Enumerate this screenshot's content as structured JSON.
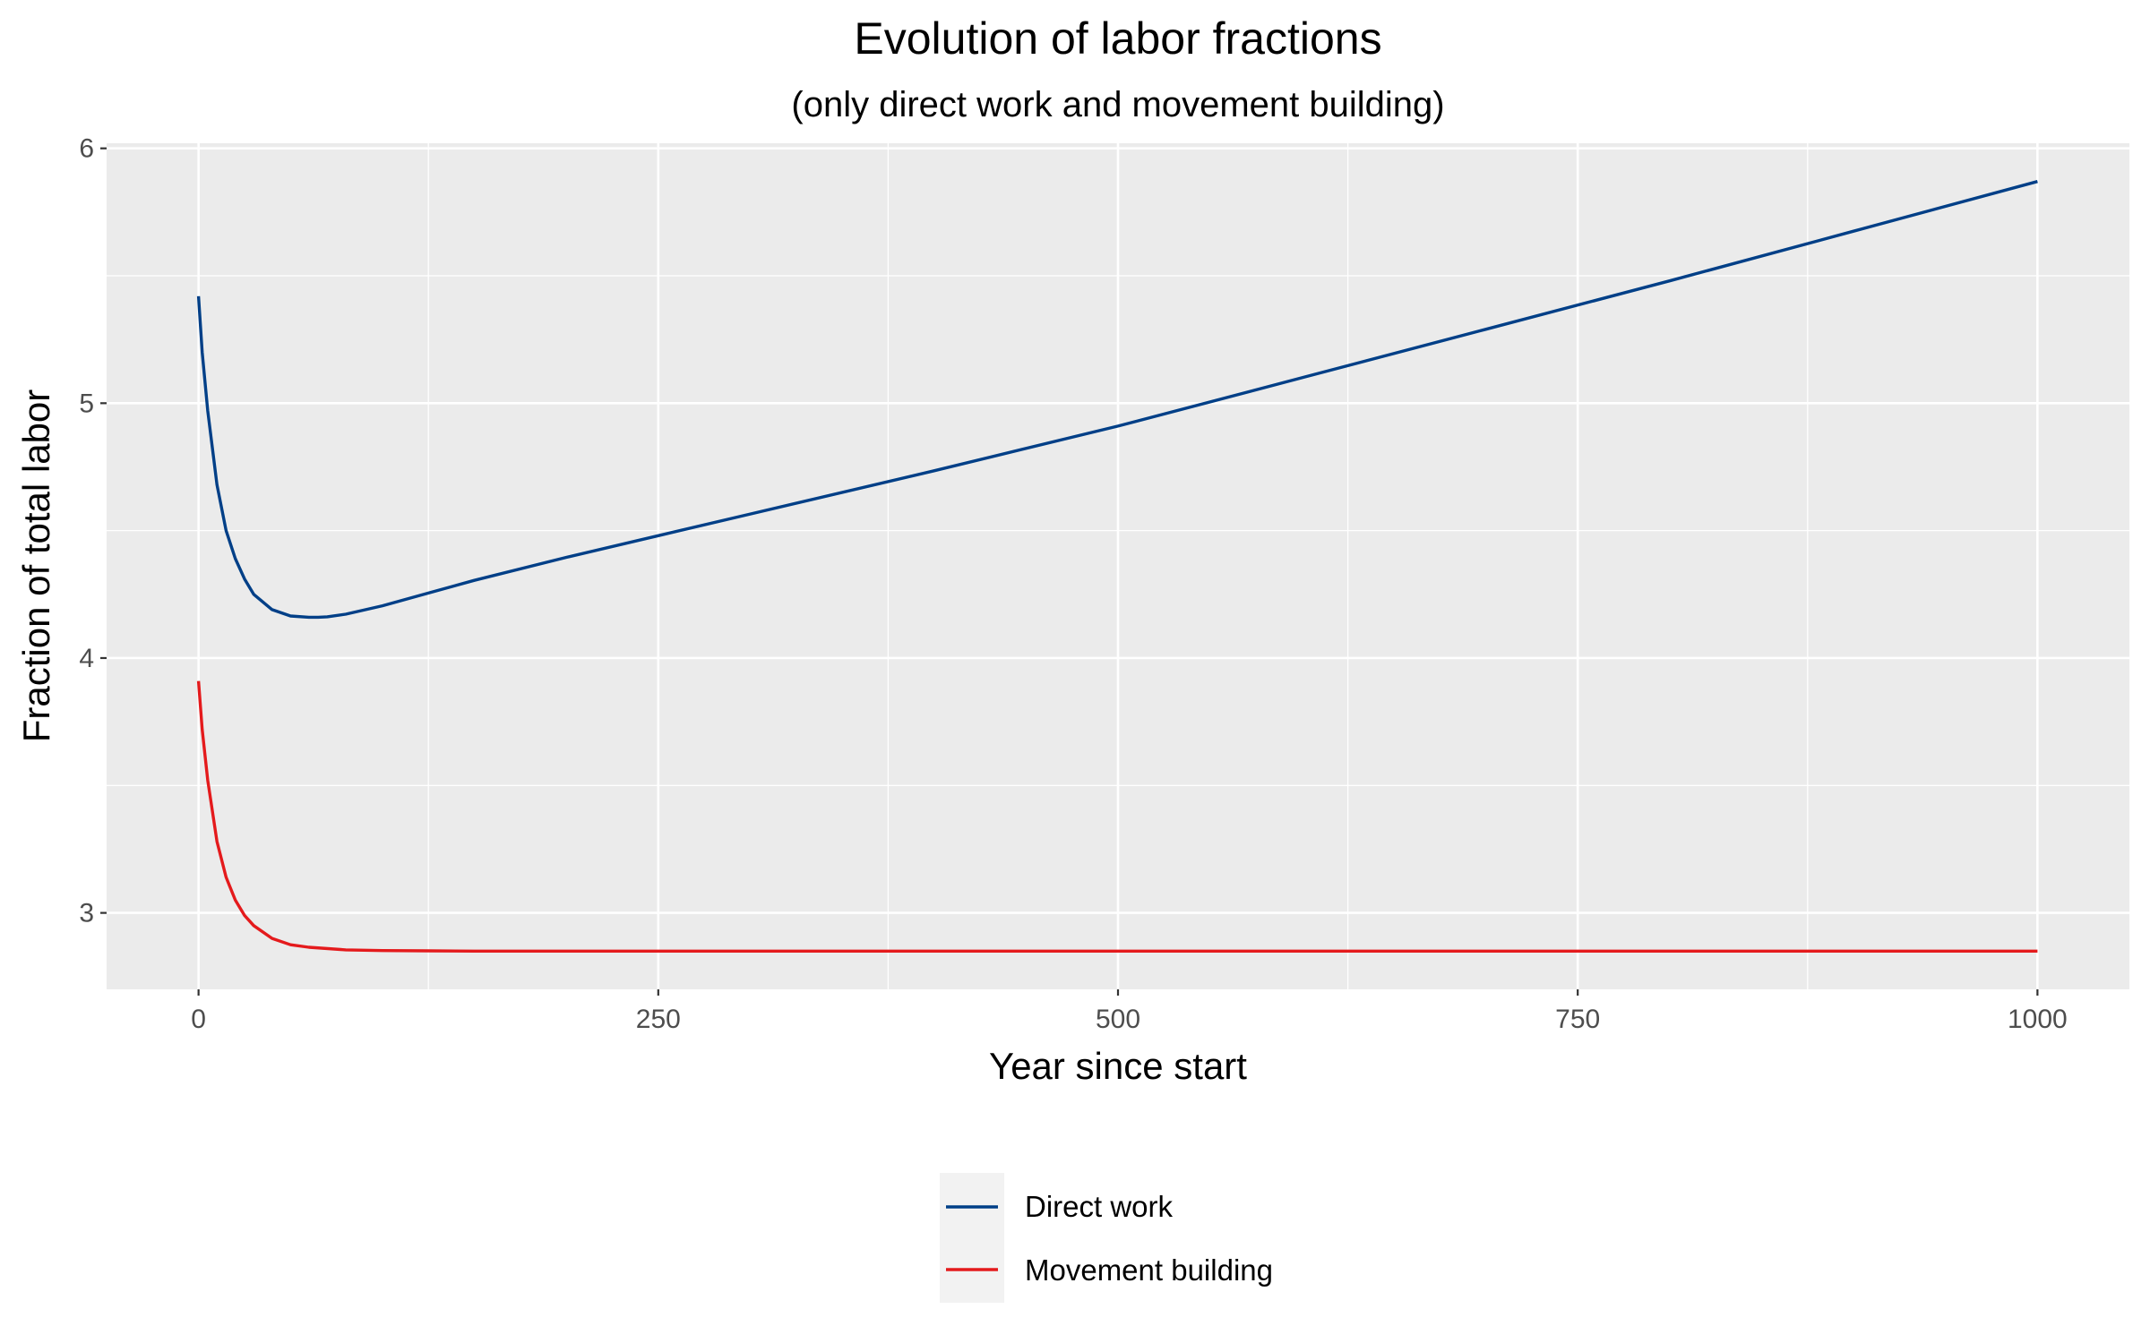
{
  "chart_data": {
    "type": "line",
    "title": "Evolution of labor fractions",
    "subtitle": "(only direct work and movement building)",
    "xlabel": "Year since start",
    "ylabel": "Fraction of total labor",
    "xlim": [
      -50,
      1050
    ],
    "ylim": [
      2.7,
      6.02
    ],
    "x_ticks": [
      0,
      250,
      500,
      750,
      1000
    ],
    "y_ticks": [
      3,
      4,
      5,
      6
    ],
    "grid": true,
    "legend_position": "bottom",
    "series": [
      {
        "name": "Direct work",
        "color": "#003f87",
        "x": [
          0,
          2,
          5,
          10,
          15,
          20,
          25,
          30,
          40,
          50,
          60,
          65,
          70,
          80,
          100,
          125,
          150,
          200,
          250,
          300,
          400,
          500,
          600,
          700,
          800,
          900,
          1000
        ],
        "y": [
          5.42,
          5.2,
          4.97,
          4.68,
          4.5,
          4.39,
          4.31,
          4.25,
          4.19,
          4.165,
          4.16,
          4.16,
          4.162,
          4.172,
          4.205,
          4.255,
          4.305,
          4.395,
          4.48,
          4.565,
          4.735,
          4.91,
          5.1,
          5.29,
          5.48,
          5.675,
          5.87
        ]
      },
      {
        "name": "Movement building",
        "color": "#e41a1c",
        "x": [
          0,
          2,
          5,
          10,
          15,
          20,
          25,
          30,
          40,
          50,
          60,
          80,
          100,
          125,
          150,
          200,
          300,
          400,
          500,
          600,
          700,
          800,
          900,
          1000
        ],
        "y": [
          3.91,
          3.72,
          3.52,
          3.28,
          3.14,
          3.05,
          2.99,
          2.95,
          2.9,
          2.875,
          2.865,
          2.855,
          2.852,
          2.851,
          2.85,
          2.85,
          2.85,
          2.85,
          2.85,
          2.85,
          2.85,
          2.85,
          2.85,
          2.85
        ]
      }
    ]
  }
}
